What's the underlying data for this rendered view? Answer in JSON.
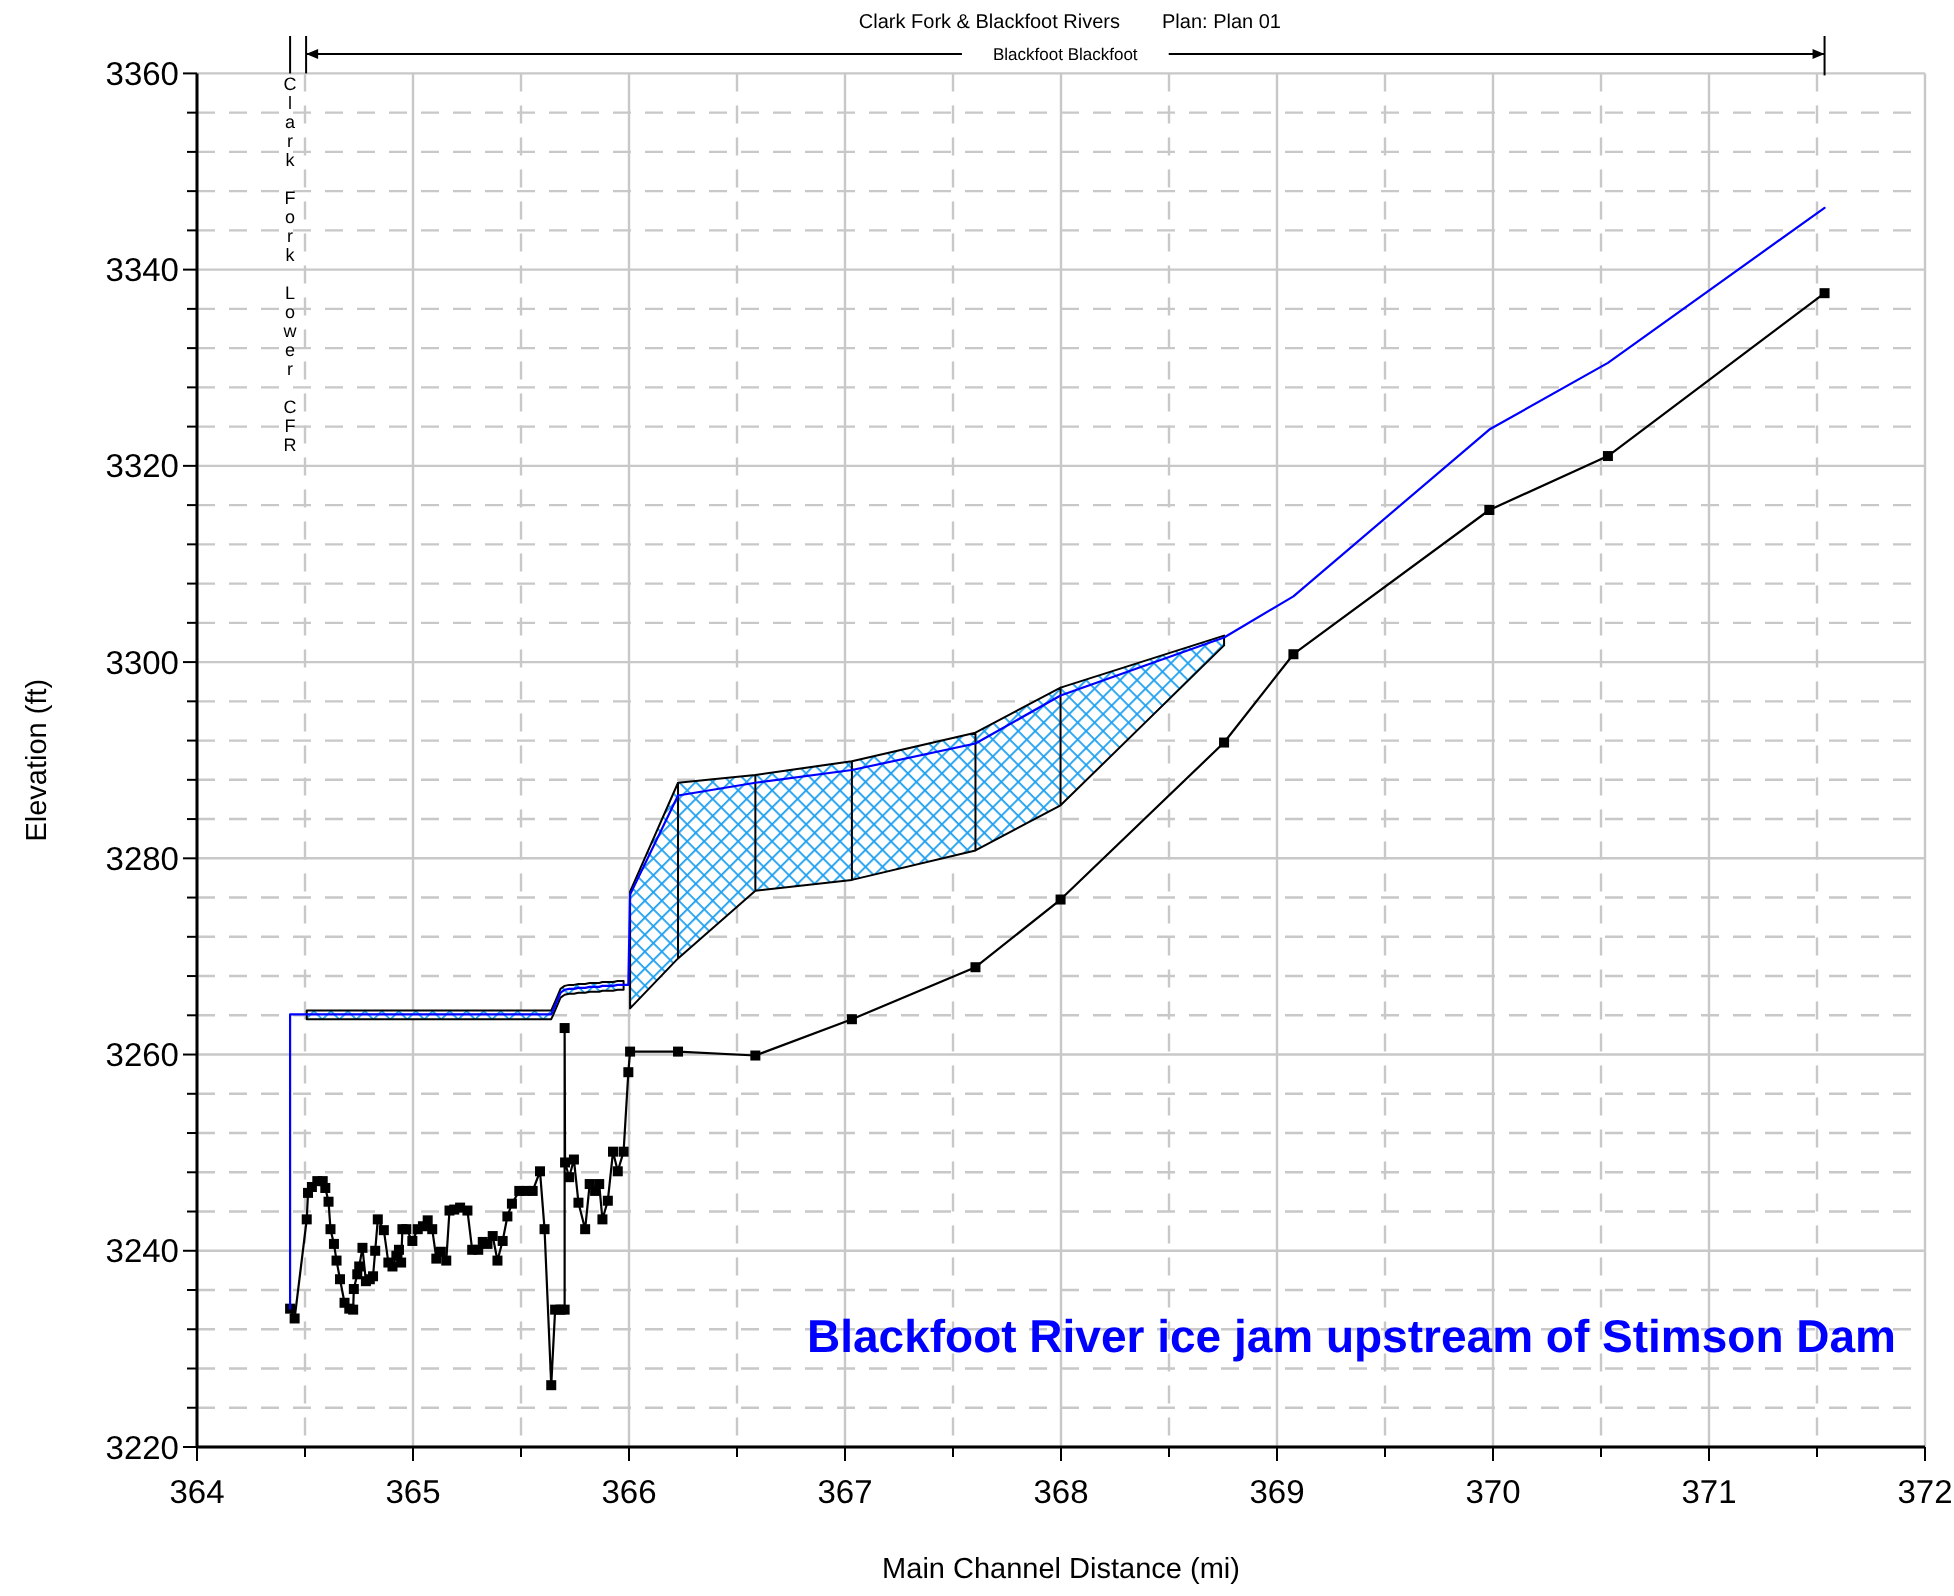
{
  "chart_data": {
    "type": "line",
    "title": "Clark Fork & Blackfoot Rivers",
    "subtitle": "Plan: Plan 01",
    "xlabel": "Main Channel Distance (mi)",
    "ylabel": "Elevation (ft)",
    "annotations": [
      "Clark Fork Lower CFR",
      "Blackfoot Blackfoot",
      "Blackfoot River ice jam upstream of Stimson Dam"
    ],
    "xlim": [
      364,
      372
    ],
    "ylim": [
      3220,
      3360
    ],
    "xticks": [
      364,
      {
        "value": 364.5,
        "label": null
      },
      365,
      {
        "value": 365.5,
        "label": null
      },
      366,
      {
        "value": 366.5,
        "label": null
      },
      367,
      {
        "value": 367.5,
        "label": null
      },
      368,
      {
        "value": 368.5,
        "label": null
      },
      369,
      {
        "value": 369.5,
        "label": null
      },
      370,
      {
        "value": 370.5,
        "label": null
      },
      371,
      {
        "value": 371.5,
        "label": null
      },
      372
    ],
    "yticks": [
      3220,
      {
        "value": 3224,
        "label": null
      },
      {
        "value": 3228,
        "label": null
      },
      {
        "value": 3232,
        "label": null
      },
      {
        "value": 3236,
        "label": null
      },
      3240,
      {
        "value": 3244,
        "label": null
      },
      {
        "value": 3248,
        "label": null
      },
      {
        "value": 3252,
        "label": null
      },
      {
        "value": 3256,
        "label": null
      },
      3260,
      {
        "value": 3264,
        "label": null
      },
      {
        "value": 3268,
        "label": null
      },
      {
        "value": 3272,
        "label": null
      },
      {
        "value": 3276,
        "label": null
      },
      3280,
      {
        "value": 3284,
        "label": null
      },
      {
        "value": 3288,
        "label": null
      },
      {
        "value": 3292,
        "label": null
      },
      {
        "value": 3296,
        "label": null
      },
      3300,
      {
        "value": 3304,
        "label": null
      },
      {
        "value": 3308,
        "label": null
      },
      {
        "value": 3312,
        "label": null
      },
      {
        "value": 3316,
        "label": null
      },
      3320,
      {
        "value": 3324,
        "label": null
      },
      {
        "value": 3328,
        "label": null
      },
      {
        "value": 3332,
        "label": null
      },
      {
        "value": 3336,
        "label": null
      },
      3340,
      {
        "value": 3344,
        "label": null
      },
      {
        "value": 3348,
        "label": null
      },
      {
        "value": 3352,
        "label": null
      },
      {
        "value": 3356,
        "label": null
      },
      3360
    ],
    "grid": true,
    "series": [
      {
        "color": "#000000",
        "marker": "square",
        "x": [
          364.431,
          364.452,
          364.508,
          364.514,
          364.532,
          364.557,
          364.582,
          364.594,
          364.609,
          364.618,
          364.634,
          364.646,
          364.662,
          364.683,
          364.705,
          364.723,
          364.726,
          364.742,
          364.751,
          364.766,
          364.782,
          364.8,
          364.815,
          364.825,
          364.837,
          364.865,
          364.886,
          364.905,
          364.923,
          364.935,
          364.945,
          364.951,
          364.969,
          364.997,
          365.022,
          365.046,
          365.068,
          365.089,
          365.108,
          365.129,
          365.154,
          365.169,
          365.191,
          365.218,
          365.252,
          365.274,
          365.302,
          365.323,
          365.345,
          365.369,
          365.391,
          365.415,
          365.437,
          365.458,
          365.492,
          365.523,
          365.554,
          365.588,
          365.609,
          365.64,
          365.658,
          365.683,
          365.702,
          365.702,
          365.704,
          365.723,
          365.745,
          365.766,
          365.797,
          365.818,
          365.843,
          365.862,
          365.877,
          365.902,
          365.926,
          365.948,
          365.975,
          365.997,
          366.005,
          366.227,
          366.585,
          367.032,
          367.604,
          367.998,
          368.755,
          369.076,
          369.983,
          370.532,
          371.535
        ],
        "values": [
          3234.1,
          3233.1,
          3243.2,
          3245.9,
          3246.5,
          3247.1,
          3247.1,
          3246.4,
          3245.0,
          3242.2,
          3240.7,
          3239.0,
          3237.1,
          3234.7,
          3234.1,
          3234.0,
          3236.1,
          3237.6,
          3238.4,
          3240.3,
          3236.9,
          3237.1,
          3237.4,
          3240.0,
          3243.2,
          3242.1,
          3238.8,
          3238.4,
          3239.5,
          3240.1,
          3238.8,
          3242.2,
          3242.2,
          3241.0,
          3242.2,
          3242.5,
          3243.1,
          3242.2,
          3239.2,
          3239.9,
          3239.0,
          3244.1,
          3244.2,
          3244.4,
          3244.1,
          3240.1,
          3240.1,
          3240.9,
          3240.7,
          3241.5,
          3239.0,
          3241.0,
          3243.5,
          3244.8,
          3246.1,
          3246.1,
          3246.1,
          3248.1,
          3242.2,
          3226.3,
          3234.0,
          3234.0,
          3234.0,
          3262.7,
          3249.0,
          3247.5,
          3249.3,
          3244.9,
          3242.2,
          3246.8,
          3246.1,
          3246.8,
          3243.2,
          3245.1,
          3250.1,
          3248.1,
          3250.1,
          3258.2,
          3260.3,
          3260.3,
          3259.9,
          3263.6,
          3268.9,
          3275.8,
          3291.8,
          3300.8,
          3315.5,
          3321.0,
          3337.6
        ]
      },
      {
        "color": "#0000ff",
        "marker": "none",
        "x": [
          364.431,
          364.431,
          364.452,
          364.508,
          364.514,
          364.532,
          364.557,
          364.582,
          364.594,
          364.609,
          364.618,
          364.634,
          364.646,
          364.662,
          364.683,
          364.705,
          364.723,
          364.726,
          364.742,
          364.751,
          364.766,
          364.782,
          364.8,
          364.815,
          364.825,
          364.837,
          364.865,
          364.886,
          364.905,
          364.923,
          364.935,
          364.945,
          364.951,
          364.969,
          364.997,
          365.022,
          365.046,
          365.068,
          365.089,
          365.108,
          365.129,
          365.154,
          365.169,
          365.191,
          365.218,
          365.252,
          365.274,
          365.302,
          365.323,
          365.345,
          365.369,
          365.391,
          365.415,
          365.437,
          365.458,
          365.492,
          365.523,
          365.554,
          365.588,
          365.609,
          365.64,
          365.658,
          365.683,
          365.702,
          365.723,
          365.745,
          365.766,
          365.797,
          365.818,
          365.843,
          365.862,
          365.877,
          365.902,
          365.926,
          365.948,
          365.975,
          365.997,
          366.005,
          366.227,
          366.585,
          367.032,
          367.604,
          367.998,
          368.755,
          369.076,
          369.983,
          370.532,
          371.535
        ],
        "values": [
          3234.1,
          3264.1,
          3264.1,
          3264.1,
          3264.1,
          3264.1,
          3264.1,
          3264.1,
          3264.1,
          3264.1,
          3264.1,
          3264.1,
          3264.1,
          3264.1,
          3264.1,
          3264.1,
          3264.1,
          3264.1,
          3264.1,
          3264.1,
          3264.1,
          3264.1,
          3264.1,
          3264.1,
          3264.1,
          3264.1,
          3264.1,
          3264.1,
          3264.1,
          3264.1,
          3264.1,
          3264.1,
          3264.1,
          3264.1,
          3264.1,
          3264.1,
          3264.1,
          3264.1,
          3264.1,
          3264.1,
          3264.1,
          3264.1,
          3264.1,
          3264.1,
          3264.1,
          3264.1,
          3264.1,
          3264.1,
          3264.1,
          3264.1,
          3264.1,
          3264.1,
          3264.1,
          3264.1,
          3264.1,
          3264.1,
          3264.1,
          3264.1,
          3264.1,
          3264.1,
          3264.1,
          3265.0,
          3266.3,
          3266.6,
          3266.7,
          3266.7,
          3266.8,
          3266.8,
          3266.9,
          3266.9,
          3266.9,
          3267.0,
          3267.0,
          3267.0,
          3267.1,
          3267.1,
          3267.1,
          3276.3,
          3286.4,
          3287.7,
          3289.0,
          3291.7,
          3296.6,
          3302.5,
          3306.7,
          3323.7,
          3330.5,
          3346.3
        ],
        "upper": [
          null,
          null,
          null,
          3264.5,
          3264.5,
          3264.5,
          3264.5,
          3264.5,
          3264.5,
          3264.5,
          3264.5,
          3264.5,
          3264.5,
          3264.5,
          3264.5,
          3264.5,
          3264.5,
          3264.5,
          3264.5,
          3264.5,
          3264.5,
          3264.5,
          3264.5,
          3264.5,
          3264.5,
          3264.5,
          3264.5,
          3264.5,
          3264.5,
          3264.5,
          3264.5,
          3264.5,
          3264.5,
          3264.5,
          3264.5,
          3264.5,
          3264.5,
          3264.5,
          3264.5,
          3264.5,
          3264.5,
          3264.5,
          3264.5,
          3264.5,
          3264.5,
          3264.5,
          3264.5,
          3264.5,
          3264.5,
          3264.5,
          3264.5,
          3264.5,
          3264.5,
          3264.5,
          3264.5,
          3264.5,
          3264.5,
          3264.5,
          3264.5,
          3264.5,
          3264.5,
          3265.4,
          3266.7,
          3267.0,
          3267.1,
          3267.1,
          3267.2,
          3267.2,
          3267.3,
          3267.3,
          3267.3,
          3267.4,
          3267.4,
          3267.4,
          3267.5,
          3267.5,
          null,
          3276.6,
          3287.7,
          3288.5,
          3289.9,
          3292.8,
          3297.4,
          3302.7,
          null,
          null,
          null,
          null
        ],
        "lower": [
          null,
          null,
          null,
          3263.6,
          3263.6,
          3263.6,
          3263.6,
          3263.6,
          3263.6,
          3263.6,
          3263.6,
          3263.6,
          3263.6,
          3263.6,
          3263.6,
          3263.6,
          3263.6,
          3263.6,
          3263.6,
          3263.6,
          3263.6,
          3263.6,
          3263.6,
          3263.6,
          3263.6,
          3263.6,
          3263.6,
          3263.6,
          3263.6,
          3263.6,
          3263.6,
          3263.6,
          3263.6,
          3263.6,
          3263.6,
          3263.6,
          3263.6,
          3263.6,
          3263.6,
          3263.6,
          3263.6,
          3263.6,
          3263.6,
          3263.6,
          3263.6,
          3263.6,
          3263.6,
          3263.6,
          3263.6,
          3263.6,
          3263.6,
          3263.6,
          3263.6,
          3263.6,
          3263.6,
          3263.6,
          3263.6,
          3263.6,
          3263.6,
          3263.6,
          3263.6,
          3264.5,
          3265.8,
          3266.1,
          3266.2,
          3266.2,
          3266.3,
          3266.3,
          3266.4,
          3266.4,
          3266.4,
          3266.5,
          3266.5,
          3266.5,
          3266.6,
          3266.6,
          null,
          3264.7,
          3269.8,
          3276.7,
          3277.8,
          3280.8,
          3285.4,
          3301.7,
          null,
          null,
          null,
          null
        ]
      }
    ]
  }
}
